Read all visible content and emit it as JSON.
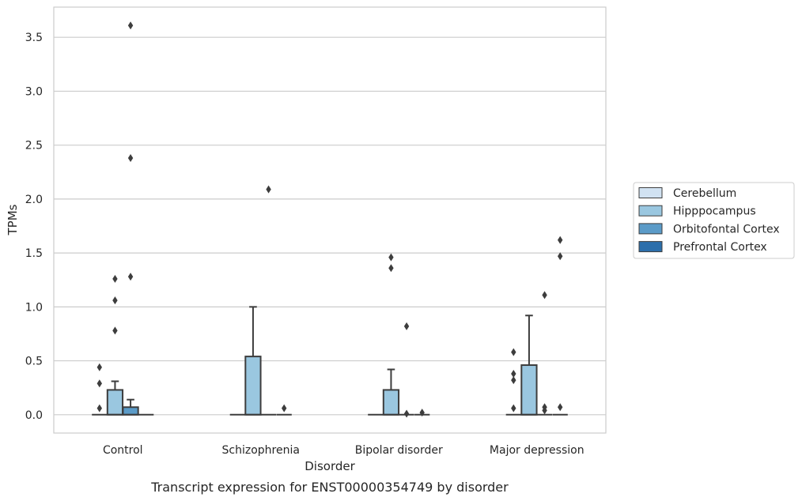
{
  "chart_data": {
    "type": "box",
    "title": "Transcript expression for ENST00000354749 by disorder",
    "xlabel": "Disorder",
    "ylabel": "TPMs",
    "ylim": [
      -0.17,
      3.78
    ],
    "yticks": [
      "0.0",
      "0.5",
      "1.0",
      "1.5",
      "2.0",
      "2.5",
      "3.0",
      "3.5"
    ],
    "grid": "horizontal",
    "legend_position": "right",
    "categories": [
      "Control",
      "Schizophrenia",
      "Bipolar disorder",
      "Major depression"
    ],
    "series": [
      {
        "name": "Cerebellum",
        "color": "#d1e2f2",
        "boxes": [
          {
            "q1": 0,
            "median": 0,
            "q3": 0,
            "whisker_low": 0,
            "whisker_high": 0,
            "outliers": []
          },
          {
            "q1": 0,
            "median": 0,
            "q3": 0,
            "whisker_low": 0,
            "whisker_high": 0,
            "outliers": []
          },
          {
            "q1": 0,
            "median": 0,
            "q3": 0,
            "whisker_low": 0,
            "whisker_high": 0,
            "outliers": []
          },
          {
            "q1": 0,
            "median": 0,
            "q3": 0,
            "whisker_low": 0,
            "whisker_high": 0,
            "outliers": [
              0.06,
              0.32,
              0.38,
              0.58
            ]
          }
        ]
      },
      {
        "name": "Hipppocampus",
        "color": "#9ac7e0",
        "boxes": [
          {
            "q1": 0,
            "median": 0,
            "q3": 0.23,
            "whisker_low": 0,
            "whisker_high": 0.31,
            "outliers": [
              0.78,
              1.06,
              1.26
            ]
          },
          {
            "q1": 0,
            "median": 0,
            "q3": 0.54,
            "whisker_low": 0,
            "whisker_high": 1.0,
            "outliers": []
          },
          {
            "q1": 0,
            "median": 0,
            "q3": 0.23,
            "whisker_low": 0,
            "whisker_high": 0.42,
            "outliers": [
              1.36,
              1.46
            ]
          },
          {
            "q1": 0,
            "median": 0,
            "q3": 0.46,
            "whisker_low": 0,
            "whisker_high": 0.92,
            "outliers": []
          }
        ]
      },
      {
        "name": "Orbitofontal Cortex",
        "color": "#5b9bc8",
        "boxes": [
          {
            "q1": 0,
            "median": 0,
            "q3": 0.07,
            "whisker_low": 0,
            "whisker_high": 0.14,
            "outliers": [
              1.28,
              2.38,
              3.61
            ]
          },
          {
            "q1": 0,
            "median": 0,
            "q3": 0,
            "whisker_low": 0,
            "whisker_high": 0,
            "outliers": [
              2.09
            ]
          },
          {
            "q1": 0,
            "median": 0,
            "q3": 0,
            "whisker_low": 0,
            "whisker_high": 0,
            "outliers": [
              0.01,
              0.82
            ]
          },
          {
            "q1": 0,
            "median": 0,
            "q3": 0,
            "whisker_low": 0,
            "whisker_high": 0,
            "outliers": [
              0.04,
              0.07,
              1.11
            ]
          }
        ]
      },
      {
        "name": "Prefrontal Cortex",
        "color": "#2c6fab",
        "boxes": [
          {
            "q1": 0,
            "median": 0,
            "q3": 0,
            "whisker_low": 0,
            "whisker_high": 0,
            "outliers": []
          },
          {
            "q1": 0,
            "median": 0,
            "q3": 0,
            "whisker_low": 0,
            "whisker_high": 0,
            "outliers": [
              0.06
            ]
          },
          {
            "q1": 0,
            "median": 0,
            "q3": 0,
            "whisker_low": 0,
            "whisker_high": 0,
            "outliers": [
              0.02
            ]
          },
          {
            "q1": 0,
            "median": 0,
            "q3": 0,
            "whisker_low": 0,
            "whisker_high": 0,
            "outliers": [
              0.07,
              1.47,
              1.62
            ]
          }
        ]
      }
    ],
    "extra_outliers": [
      {
        "category": "Control",
        "series": "Cerebellum",
        "values": [
          0.06,
          0.29,
          0.44
        ]
      }
    ]
  }
}
